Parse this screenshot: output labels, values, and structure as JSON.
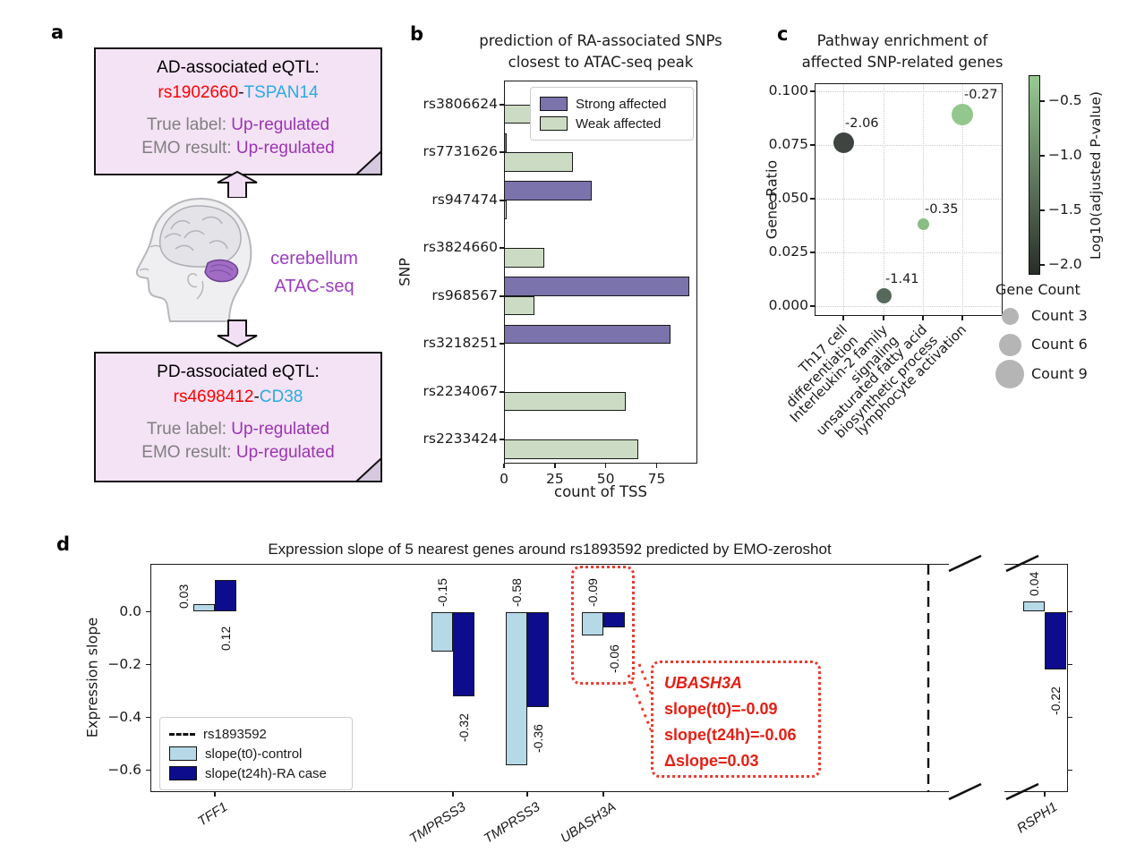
{
  "figure": {
    "panel_labels": [
      "a",
      "b",
      "c",
      "d"
    ]
  },
  "panel_a": {
    "boxes": [
      {
        "title": "AD-associated eQTL:",
        "snp": "rs1902660",
        "separator": "-",
        "gene": "TSPAN14",
        "true_label_key": "True label:",
        "true_label_value": "Up-regulated",
        "emo_key": "EMO result:",
        "emo_value": "Up-regulated"
      },
      {
        "title": "PD-associated eQTL:",
        "snp": "rs4698412",
        "separator": "-",
        "gene": "CD38",
        "true_label_key": "True label:",
        "true_label_value": "Up-regulated",
        "emo_key": "EMO result:",
        "emo_value": "Up-regulated"
      }
    ],
    "brain_caption": [
      "cerebellum",
      "ATAC-seq"
    ],
    "colors": {
      "snp_red": "#ff0000",
      "gene_cyan": "#29abe2",
      "label_gray": "#7f7f7f",
      "value_purple": "#9a34b2",
      "box_fill": "#f4e3f5",
      "arrow_fill": "#f3dff5",
      "cerebellum_purple": "#a06cc4"
    }
  },
  "chart_data": [
    {
      "id": "b",
      "type": "bar",
      "orientation": "horizontal",
      "title_lines": [
        "prediction of RA-associated SNPs",
        "closest to ATAC-seq peak"
      ],
      "categories": [
        "rs3806624",
        "rs7731626",
        "rs947474",
        "rs3824660",
        "rs968567",
        "rs3218251",
        "rs2234067",
        "rs2233424"
      ],
      "series": [
        {
          "name": "Strong affected",
          "color": "#7b73ac",
          "values": [
            0,
            1,
            43,
            0,
            91,
            82,
            0,
            0
          ]
        },
        {
          "name": "Weak affected",
          "color": "#ccdcc4",
          "values": [
            13,
            34,
            1,
            20,
            15,
            0,
            60,
            66
          ]
        }
      ],
      "xlabel": "count of TSS",
      "ylabel": "SNP",
      "xlim": [
        0,
        95
      ],
      "xticks": [
        0,
        25,
        50,
        75
      ],
      "legend_position": "upper right",
      "grid": false
    },
    {
      "id": "c",
      "type": "scatter",
      "title_lines": [
        "Pathway enrichment of",
        "affected SNP-related genes"
      ],
      "ylabel": "Gene Ratio",
      "categories": [
        [
          "Th17 cell",
          "differentiation"
        ],
        [
          "Interleukin-2 family signaling"
        ],
        [
          "unsaturated fatty acid",
          "biosynthetic process"
        ],
        [
          "lymphocyte activation"
        ]
      ],
      "points": [
        {
          "pathway": "Th17 cell differentiation",
          "gene_ratio": 0.076,
          "log10_adj_p": -2.06,
          "size": 23,
          "color": "#3f4440"
        },
        {
          "pathway": "Interleukin-2 family signaling",
          "gene_ratio": 0.005,
          "log10_adj_p": -1.41,
          "size": 17,
          "color": "#57695a"
        },
        {
          "pathway": "unsaturated fatty acid biosynthetic process",
          "gene_ratio": 0.038,
          "log10_adj_p": -0.35,
          "size": 13,
          "color": "#8abc85"
        },
        {
          "pathway": "lymphocyte activation",
          "gene_ratio": 0.089,
          "log10_adj_p": -0.27,
          "size": 24,
          "color": "#93c78e"
        }
      ],
      "yticks": [
        0.0,
        0.025,
        0.05,
        0.075,
        0.1
      ],
      "ylim": [
        -0.004,
        0.104
      ],
      "grid": "dotted",
      "colorbar": {
        "label": "Log10(adjusted P-value)",
        "ticks": [
          -0.5,
          -1.0,
          -1.5,
          -2.0
        ],
        "top_color": "#97cb91",
        "bottom_color": "#272d27"
      },
      "size_legend": {
        "title": "Gene Count",
        "items": [
          {
            "label": "Count 3",
            "d": 19
          },
          {
            "label": "Count 6",
            "d": 25
          },
          {
            "label": "Count 9",
            "d": 32
          }
        ]
      }
    },
    {
      "id": "d",
      "type": "bar",
      "title": "Expression slope of 5 nearest genes around rs1893592 predicted by EMO-zeroshot",
      "ylabel": "Expression slope",
      "yticks": [
        0.0,
        -0.2,
        -0.4,
        -0.6
      ],
      "ylim": [
        -0.69,
        0.18
      ],
      "series": [
        {
          "name": "slope(t0)-control",
          "color": "#b6d9e8"
        },
        {
          "name": "slope(t24h)-RA case",
          "color": "#0c0c8c"
        }
      ],
      "vline_label": "rs1893592",
      "groups": [
        {
          "gene": "TFF1",
          "t0": 0.03,
          "t24h": 0.12
        },
        {
          "gene": "TMPRSS3",
          "t0": -0.15,
          "t24h": -0.32
        },
        {
          "gene": "TMPRSS3",
          "t0": -0.58,
          "t24h": -0.36
        },
        {
          "gene": "UBASH3A",
          "t0": -0.09,
          "t24h": -0.06
        },
        {
          "gene": "RSPH1",
          "t0": 0.04,
          "t24h": -0.22
        }
      ],
      "axis_break_before": "RSPH1",
      "annotation": {
        "title": "UBASH3A",
        "line1": "slope(t0)=-0.09",
        "line2": "slope(t24h)=-0.06",
        "line3": "Δslope=0.03"
      }
    }
  ]
}
